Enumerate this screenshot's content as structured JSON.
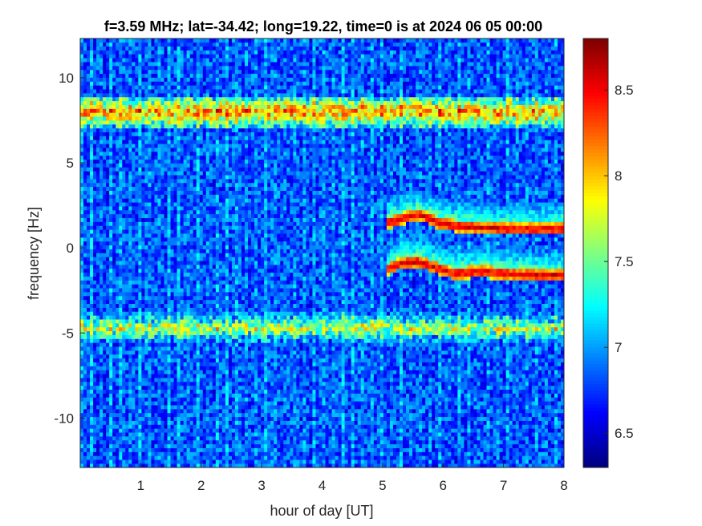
{
  "chart_data": {
    "type": "heatmap",
    "title": "f=3.59 MHz;  lat=-34.42; long=19.22, time=0 is at 2024 06 05 00:00",
    "xlabel": "hour of day [UT]",
    "ylabel": "frequency [Hz]",
    "xlim": [
      0,
      8
    ],
    "ylim": [
      -12.9,
      12.3
    ],
    "xticks": [
      1,
      2,
      3,
      4,
      5,
      6,
      7,
      8
    ],
    "yticks": [
      10,
      5,
      0,
      -5,
      -10
    ],
    "colorbar": {
      "colormap": "jet",
      "clim": [
        6.3,
        8.8
      ],
      "ticks": [
        8.5,
        8,
        7.5,
        7,
        6.5
      ]
    },
    "background_level": 6.85,
    "features": [
      {
        "name": "",
        "kind": "band",
        "frequency": 8.0,
        "x_range": [
          0,
          8
        ],
        "peak_level": 8.6
      },
      {
        "name": "",
        "kind": "band",
        "frequency": -4.7,
        "x_range": [
          0,
          8
        ],
        "peak_level": 8.2
      },
      {
        "name": "",
        "kind": "trace",
        "points": [
          [
            5.05,
            1.4
          ],
          [
            5.3,
            1.7
          ],
          [
            5.6,
            2.0
          ],
          [
            5.9,
            1.5
          ],
          [
            6.2,
            1.3
          ],
          [
            6.6,
            1.2
          ],
          [
            7.0,
            1.1
          ],
          [
            7.5,
            1.1
          ],
          [
            8.0,
            1.1
          ]
        ],
        "peak_level": 8.8
      },
      {
        "name": "",
        "kind": "trace",
        "points": [
          [
            5.05,
            -1.3
          ],
          [
            5.3,
            -0.9
          ],
          [
            5.6,
            -0.8
          ],
          [
            5.9,
            -1.2
          ],
          [
            6.2,
            -1.5
          ],
          [
            6.6,
            -1.4
          ],
          [
            7.0,
            -1.5
          ],
          [
            7.5,
            -1.6
          ],
          [
            8.0,
            -1.6
          ]
        ],
        "peak_level": 8.8
      }
    ]
  }
}
